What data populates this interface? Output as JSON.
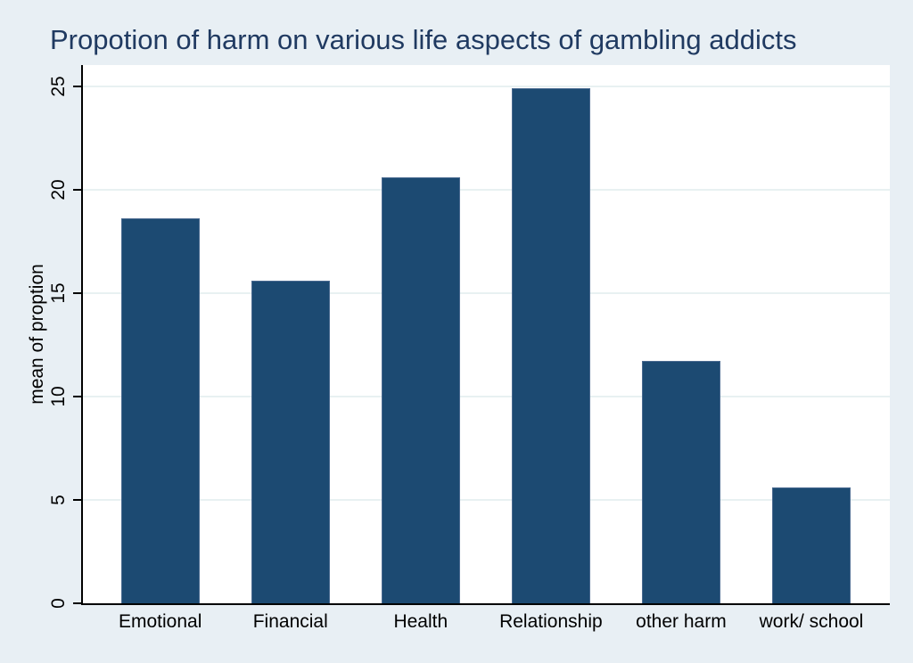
{
  "chart_data": {
    "type": "bar",
    "title": "Propotion of harm on various life aspects of gambling addicts",
    "ylabel": "mean of proption",
    "xlabel": "",
    "categories": [
      "Emotional",
      "Financial",
      "Health",
      "Relationship",
      "other harm",
      "work/ school"
    ],
    "values": [
      18.6,
      15.6,
      20.6,
      24.9,
      11.7,
      5.6
    ],
    "yticks": [
      0,
      5,
      10,
      15,
      20,
      25
    ],
    "ylim": [
      0,
      26
    ],
    "grid": true,
    "legend": false,
    "colors": {
      "bar_fill": "#1c4a72",
      "bar_outline": "#4a6a90",
      "background": "#e8eff4",
      "plot_background": "#ffffff",
      "gridline": "#e8f1f2",
      "title_text": "#203a61",
      "axis_text": "#000000",
      "axis_line": "#000000"
    }
  }
}
